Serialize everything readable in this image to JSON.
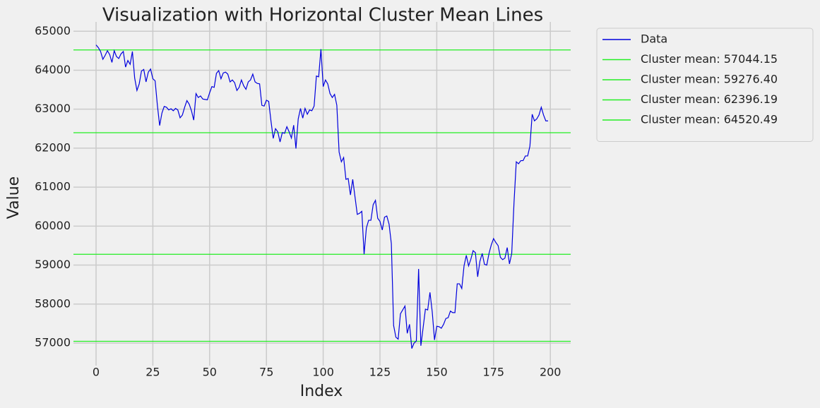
{
  "chart_data": {
    "type": "line",
    "title": "Visualization with Horizontal Cluster Mean Lines",
    "x_label": "Index",
    "y_label": "Value",
    "x": [
      0,
      1,
      2,
      3,
      4,
      5,
      6,
      7,
      8,
      9,
      10,
      11,
      12,
      13,
      14,
      15,
      16,
      17,
      18,
      19,
      20,
      21,
      22,
      23,
      24,
      25,
      26,
      27,
      28,
      29,
      30,
      31,
      32,
      33,
      34,
      35,
      36,
      37,
      38,
      39,
      40,
      41,
      42,
      43,
      44,
      45,
      46,
      47,
      48,
      49,
      50,
      51,
      52,
      53,
      54,
      55,
      56,
      57,
      58,
      59,
      60,
      61,
      62,
      63,
      64,
      65,
      66,
      67,
      68,
      69,
      70,
      71,
      72,
      73,
      74,
      75,
      76,
      77,
      78,
      79,
      80,
      81,
      82,
      83,
      84,
      85,
      86,
      87,
      88,
      89,
      90,
      91,
      92,
      93,
      94,
      95,
      96,
      97,
      98,
      99,
      100,
      101,
      102,
      103,
      104,
      105,
      106,
      107,
      108,
      109,
      110,
      111,
      112,
      113,
      114,
      115,
      116,
      117,
      118,
      119,
      120,
      121,
      122,
      123,
      124,
      125,
      126,
      127,
      128,
      129,
      130,
      131,
      132,
      133,
      134,
      135,
      136,
      137,
      138,
      139,
      140,
      141,
      142,
      143,
      144,
      145,
      146,
      147,
      148,
      149,
      150,
      151,
      152,
      153,
      154,
      155,
      156,
      157,
      158,
      159,
      160,
      161,
      162,
      163,
      164,
      165,
      166,
      167,
      168,
      169,
      170,
      171,
      172,
      173,
      174,
      175,
      176,
      177,
      178,
      179,
      180,
      181,
      182,
      183,
      184,
      185,
      186,
      187,
      188,
      189,
      190,
      191,
      192,
      193,
      194,
      195,
      196,
      197,
      198,
      199
    ],
    "series": [
      {
        "name": "Data",
        "color": "#0000dd",
        "values": [
          64650,
          64580,
          64480,
          64280,
          64380,
          64500,
          64400,
          64200,
          64500,
          64350,
          64300,
          64420,
          64480,
          64080,
          64250,
          64150,
          64480,
          63800,
          63480,
          63650,
          63980,
          64020,
          63700,
          63950,
          64030,
          63780,
          63730,
          63100,
          62580,
          62900,
          63070,
          63050,
          62980,
          63010,
          62960,
          63020,
          62980,
          62780,
          62850,
          63050,
          63220,
          63130,
          62960,
          62720,
          63400,
          63300,
          63340,
          63260,
          63250,
          63240,
          63420,
          63580,
          63560,
          63920,
          63990,
          63780,
          63930,
          63950,
          63900,
          63700,
          63750,
          63680,
          63480,
          63560,
          63750,
          63600,
          63510,
          63700,
          63750,
          63900,
          63700,
          63660,
          63650,
          63100,
          63080,
          63230,
          63200,
          62700,
          62250,
          62500,
          62420,
          62160,
          62400,
          62380,
          62550,
          62420,
          62260,
          62590,
          61990,
          62750,
          63020,
          62770,
          63020,
          62870,
          62980,
          62960,
          63080,
          63850,
          63830,
          64540,
          63580,
          63750,
          63650,
          63400,
          63300,
          63380,
          63100,
          61900,
          61650,
          61760,
          61200,
          61220,
          60800,
          61200,
          60750,
          60300,
          60330,
          60380,
          59280,
          59950,
          60150,
          60150,
          60550,
          60660,
          60200,
          60120,
          59900,
          60230,
          60260,
          60050,
          59550,
          57450,
          57150,
          57100,
          57750,
          57850,
          57950,
          57250,
          57480,
          56860,
          57000,
          57050,
          58900,
          56930,
          57400,
          57870,
          57850,
          58300,
          57800,
          57080,
          57430,
          57420,
          57380,
          57480,
          57630,
          57650,
          57820,
          57780,
          57780,
          58520,
          58520,
          58400,
          58980,
          59250,
          58980,
          59150,
          59370,
          59320,
          58700,
          59100,
          59300,
          59020,
          59000,
          59300,
          59520,
          59680,
          59580,
          59500,
          59200,
          59140,
          59180,
          59450,
          59030,
          59300,
          60600,
          61650,
          61600,
          61680,
          61680,
          61800,
          61800,
          62050,
          62870,
          62700,
          62750,
          62850,
          63050,
          62850,
          62700,
          62700
        ]
      }
    ],
    "hlines": [
      {
        "name": "Cluster mean: 57044.15",
        "value": 57044.15,
        "color": "#22ee22"
      },
      {
        "name": "Cluster mean: 59276.40",
        "value": 59276.4,
        "color": "#22ee22"
      },
      {
        "name": "Cluster mean: 62396.19",
        "value": 62396.19,
        "color": "#22ee22"
      },
      {
        "name": "Cluster mean: 64520.49",
        "value": 64520.49,
        "color": "#22ee22"
      }
    ],
    "xlim": [
      -9.95,
      208.95
    ],
    "xticks": [
      0,
      25,
      50,
      75,
      100,
      125,
      150,
      175,
      200
    ],
    "ylim": [
      56420,
      65240
    ],
    "yticks": [
      57000,
      58000,
      59000,
      60000,
      61000,
      62000,
      63000,
      64000,
      65000
    ],
    "grid": true,
    "legend": "outside-upper-right"
  }
}
